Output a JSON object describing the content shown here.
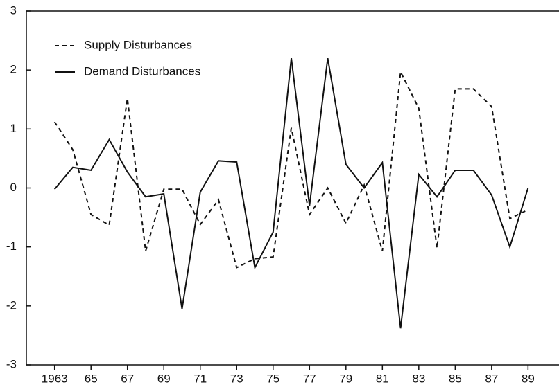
{
  "chart_data": {
    "type": "line",
    "x": [
      1963,
      1964,
      1965,
      1966,
      1967,
      1968,
      1969,
      1970,
      1971,
      1972,
      1973,
      1974,
      1975,
      1976,
      1977,
      1978,
      1979,
      1980,
      1981,
      1982,
      1983,
      1984,
      1985,
      1986,
      1987,
      1988,
      1989
    ],
    "series": [
      {
        "name": "Supply Disturbances",
        "color": "#111111",
        "dash": true,
        "values": [
          1.12,
          0.65,
          -0.45,
          -0.63,
          1.52,
          -1.07,
          -0.02,
          -0.02,
          -0.62,
          -0.2,
          -1.35,
          -1.2,
          -1.17,
          1.02,
          -0.45,
          0.0,
          -0.6,
          0.05,
          -1.07,
          1.97,
          1.35,
          -1.02,
          1.68,
          1.68,
          1.38,
          -0.52,
          -0.37
        ]
      },
      {
        "name": "Demand Disturbances",
        "color": "#111111",
        "dash": false,
        "values": [
          -0.02,
          0.35,
          0.3,
          0.82,
          0.27,
          -0.15,
          -0.1,
          -2.05,
          -0.07,
          0.46,
          0.44,
          -1.35,
          -0.75,
          2.2,
          -0.3,
          2.2,
          0.4,
          0.0,
          0.43,
          -2.38,
          0.23,
          -0.15,
          0.3,
          0.3,
          -0.12,
          -1.0,
          0.0
        ]
      }
    ],
    "xlim": [
      1961.45,
      1990.7
    ],
    "xticks": [
      1963,
      {
        "value": 1965,
        "label": "65"
      },
      {
        "value": 1967,
        "label": "67"
      },
      {
        "value": 1969,
        "label": "69"
      },
      {
        "value": 1971,
        "label": "71"
      },
      {
        "value": 1973,
        "label": "73"
      },
      {
        "value": 1975,
        "label": "75"
      },
      {
        "value": 1977,
        "label": "77"
      },
      {
        "value": 1979,
        "label": "79"
      },
      {
        "value": 1981,
        "label": "81"
      },
      {
        "value": 1983,
        "label": "83"
      },
      {
        "value": 1985,
        "label": "85"
      },
      {
        "value": 1987,
        "label": "87"
      },
      {
        "value": 1989,
        "label": "89"
      }
    ],
    "ylim": [
      -3,
      3
    ],
    "yticks": [
      -3,
      -2,
      -1,
      0,
      1,
      2,
      3
    ],
    "legend": "top-left"
  }
}
